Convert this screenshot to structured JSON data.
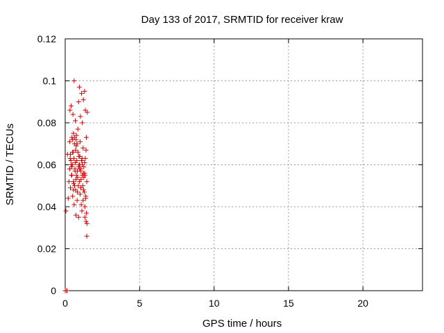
{
  "chart_data": {
    "type": "scatter",
    "title": "Day 133 of 2017, SRMTID for receiver kraw",
    "xlabel": "GPS time / hours",
    "ylabel": "SRMTID / TECUs",
    "xlim": [
      0,
      24
    ],
    "ylim": [
      0,
      0.12
    ],
    "x_ticks": [
      0,
      5,
      10,
      15,
      20
    ],
    "x_tick_labels": [
      "0",
      "5",
      "10",
      "15",
      "20"
    ],
    "y_ticks": [
      0,
      0.02,
      0.04,
      0.06,
      0.08,
      0.1,
      0.12
    ],
    "y_tick_labels": [
      "0",
      "0.02",
      "0.04",
      "0.06",
      "0.08",
      "0.1",
      "0.12"
    ],
    "grid": true,
    "legend": "none",
    "marker": "plus",
    "color": "#cc0000",
    "series": [
      {
        "x": [
          0.0,
          0.1,
          0.12,
          0.05,
          0.2,
          0.15,
          0.25,
          0.3,
          0.3,
          0.32,
          0.35,
          0.38,
          0.4,
          0.42,
          0.45,
          0.48,
          0.5,
          0.5,
          0.52,
          0.55,
          0.55,
          0.58,
          0.6,
          0.6,
          0.62,
          0.65,
          0.68,
          0.7,
          0.7,
          0.72,
          0.75,
          0.75,
          0.78,
          0.8,
          0.8,
          0.82,
          0.85,
          0.88,
          0.9,
          0.9,
          0.92,
          0.95,
          0.95,
          0.98,
          1.0,
          1.0,
          1.02,
          1.05,
          1.08,
          1.1,
          1.1,
          1.12,
          1.15,
          1.15,
          1.18,
          1.2,
          1.2,
          1.22,
          1.25,
          1.28,
          1.3,
          1.3,
          1.32,
          1.35,
          1.35,
          1.38,
          1.4,
          1.4,
          1.42,
          1.45,
          1.45,
          1.48,
          0.35,
          0.45,
          0.55,
          0.62,
          0.68,
          0.72,
          0.85,
          0.95,
          1.05,
          1.12,
          1.25,
          1.32,
          0.4,
          0.5,
          0.58,
          0.66,
          0.74,
          0.82,
          0.9,
          0.98,
          1.06,
          1.14,
          1.22,
          1.3,
          1.38,
          1.46,
          0.33,
          0.43,
          0.53,
          0.63,
          0.73,
          0.83,
          0.93,
          1.03,
          1.13,
          1.23,
          1.33,
          1.43
        ],
        "y": [
          0.0,
          0.0,
          0.0,
          0.038,
          0.044,
          0.065,
          0.052,
          0.058,
          0.071,
          0.086,
          0.049,
          0.062,
          0.088,
          0.055,
          0.073,
          0.06,
          0.045,
          0.066,
          0.084,
          0.052,
          0.075,
          0.063,
          0.1,
          0.041,
          0.07,
          0.058,
          0.081,
          0.048,
          0.067,
          0.036,
          0.074,
          0.055,
          0.062,
          0.043,
          0.07,
          0.057,
          0.077,
          0.05,
          0.09,
          0.035,
          0.064,
          0.097,
          0.052,
          0.06,
          0.046,
          0.071,
          0.083,
          0.058,
          0.041,
          0.094,
          0.062,
          0.038,
          0.055,
          0.08,
          0.05,
          0.068,
          0.043,
          0.091,
          0.059,
          0.047,
          0.095,
          0.056,
          0.035,
          0.086,
          0.063,
          0.044,
          0.033,
          0.067,
          0.073,
          0.052,
          0.026,
          0.085,
          0.065,
          0.055,
          0.048,
          0.073,
          0.061,
          0.053,
          0.066,
          0.058,
          0.049,
          0.062,
          0.054,
          0.04,
          0.06,
          0.072,
          0.051,
          0.057,
          0.069,
          0.047,
          0.059,
          0.064,
          0.053,
          0.06,
          0.056,
          0.061,
          0.045,
          0.032,
          0.063,
          0.059,
          0.066,
          0.05,
          0.072,
          0.054,
          0.06,
          0.057,
          0.063,
          0.048,
          0.055,
          0.037
        ]
      }
    ]
  }
}
